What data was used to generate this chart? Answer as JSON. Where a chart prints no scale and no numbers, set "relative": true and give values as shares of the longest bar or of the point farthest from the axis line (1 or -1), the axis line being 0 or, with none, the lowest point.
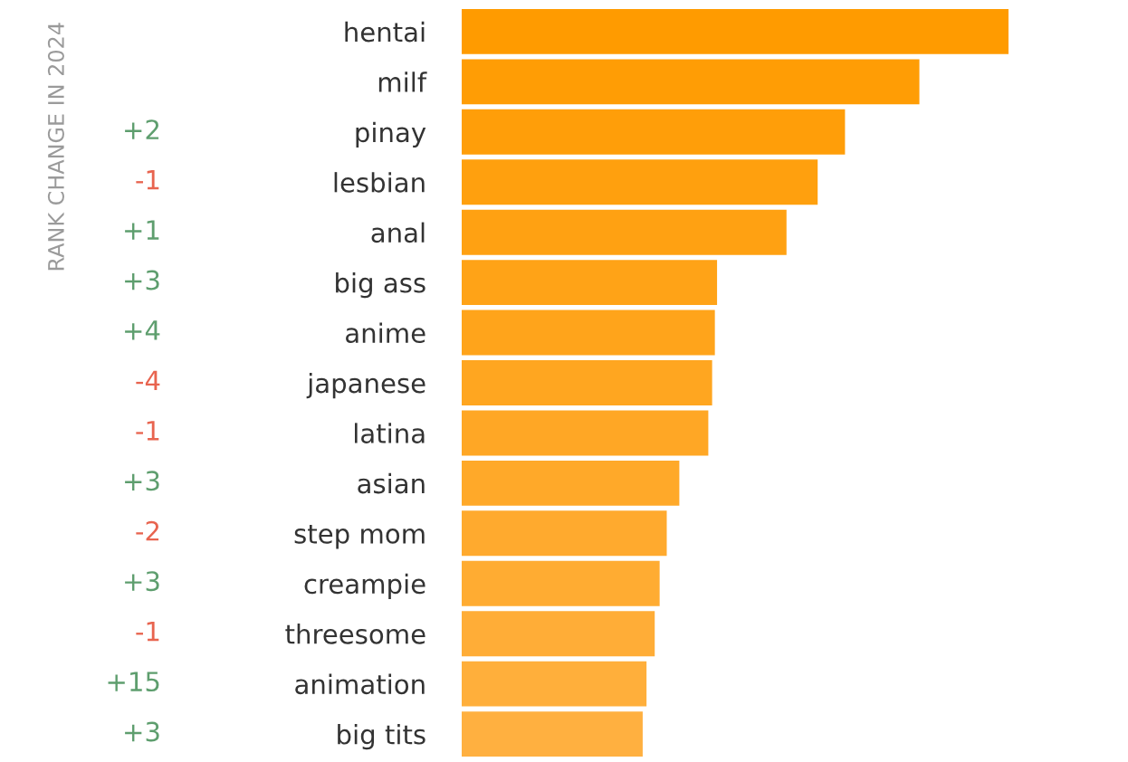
{
  "chart_data": {
    "type": "bar",
    "orientation": "horizontal",
    "relative": true,
    "categories": [
      "hentai",
      "milf",
      "pinay",
      "lesbian",
      "anal",
      "big ass",
      "anime",
      "japanese",
      "latina",
      "asian",
      "step mom",
      "creampie",
      "threesome",
      "animation",
      "big tits"
    ],
    "values": [
      1,
      0.837,
      0.701,
      0.651,
      0.594,
      0.467,
      0.463,
      0.458,
      0.451,
      0.398,
      0.375,
      0.362,
      0.353,
      0.338,
      0.331
    ],
    "colors": [
      "#ff9b00",
      "#ff9d05",
      "#ff9e09",
      "#ffa00e",
      "#ffa112",
      "#ffa317",
      "#ffa41b",
      "#ffa620",
      "#ffa725",
      "#ffa929",
      "#ffaa2e",
      "#ffac32",
      "#ffad37",
      "#ffaf3b",
      "#ffb040"
    ],
    "annotations": [
      "RANK CHANGE IN 2024",
      "+2",
      "-1",
      "+1",
      "+3",
      "+4",
      "-4",
      "-1",
      "+3",
      "-2",
      "+3",
      "-1",
      "+15",
      "+3"
    ],
    "grid": false,
    "legend": false
  }
}
